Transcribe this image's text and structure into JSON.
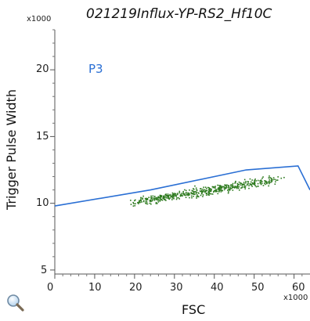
{
  "chart_data": {
    "type": "scatter",
    "title": "021219Influx-YP-RS2_Hf10C",
    "xlabel": "FSC",
    "ylabel": "Trigger Pulse Width",
    "x_multiplier": "x1000",
    "y_multiplier": "x1000",
    "xlim": [
      0,
      64
    ],
    "ylim": [
      4.7,
      23
    ],
    "xticks": [
      "0",
      "10",
      "20",
      "30",
      "40",
      "50",
      "60"
    ],
    "yticks": [
      "5",
      "10",
      "15",
      "20"
    ],
    "xtick_values": [
      0,
      10,
      20,
      30,
      40,
      50,
      60
    ],
    "ytick_values": [
      5,
      10,
      15,
      20
    ],
    "grid": false,
    "point_color": "#2d7a1e",
    "gate": {
      "name": "P3",
      "color": "#2a6fd4",
      "vertices": [
        [
          0,
          9.8
        ],
        [
          24,
          11.0
        ],
        [
          48,
          12.5
        ],
        [
          61,
          12.8
        ],
        [
          64,
          11.0
        ]
      ]
    },
    "cluster": {
      "x_range": [
        17,
        58
      ],
      "y_at_x_start": 10.0,
      "y_at_x_end": 11.9,
      "y_spread": 0.55,
      "count": 520
    }
  },
  "ui": {
    "zoom_icon": "magnifier-icon"
  }
}
